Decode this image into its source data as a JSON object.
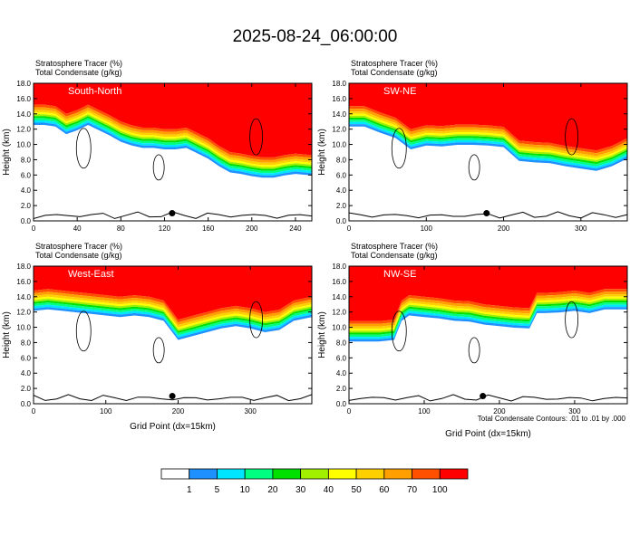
{
  "title": "2025-08-24_06:00:00",
  "legend": {
    "levels": [
      "1",
      "5",
      "10",
      "20",
      "30",
      "40",
      "50",
      "60",
      "70",
      "100"
    ],
    "colors": [
      "#ffffff",
      "#1e90ff",
      "#00e5ff",
      "#00ff80",
      "#00e000",
      "#a0f000",
      "#ffff00",
      "#ffd000",
      "#ffa000",
      "#ff5000",
      "#ff0000"
    ]
  },
  "footnote": "Total Condensate Contours: .01 to .01 by .000",
  "chart_data": [
    {
      "type": "heatmap",
      "title": "South-North",
      "fields": [
        "Stratosphere Tracer   (%)",
        "Total Condensate   (g/kg)"
      ],
      "ylabel": "Height (km)",
      "xlabel": "",
      "xlim": [
        0,
        255
      ],
      "ylim": [
        0,
        18
      ],
      "xticks": [
        0,
        40,
        80,
        120,
        160,
        200,
        240
      ],
      "yticks": [
        "0.0",
        "2.0",
        "4.0",
        "6.0",
        "8.0",
        "10.0",
        "12.0",
        "14.0",
        "16.0",
        "18.0"
      ],
      "tropopause_x": [
        0,
        10,
        20,
        30,
        40,
        50,
        60,
        70,
        80,
        90,
        100,
        110,
        120,
        130,
        140,
        150,
        160,
        170,
        180,
        190,
        200,
        210,
        220,
        230,
        240,
        255
      ],
      "tropopause_y": [
        15.2,
        15.2,
        15.0,
        14.0,
        14.5,
        15.2,
        14.5,
        13.8,
        13.0,
        12.5,
        12.2,
        12.2,
        12.0,
        12.0,
        12.2,
        11.5,
        10.8,
        9.8,
        9.0,
        8.8,
        8.5,
        8.3,
        8.3,
        8.6,
        8.8,
        8.6
      ],
      "dot": [
        127,
        1.0
      ]
    },
    {
      "type": "heatmap",
      "title": "SW-NE",
      "fields": [
        "Stratosphere Tracer   (%)",
        "Total Condensate   (g/kg)"
      ],
      "ylabel": "Height (km)",
      "xlabel": "",
      "xlim": [
        0,
        360
      ],
      "ylim": [
        0,
        18
      ],
      "xticks": [
        0,
        100,
        200,
        300
      ],
      "yticks": [
        "0.0",
        "2.0",
        "4.0",
        "6.0",
        "8.0",
        "10.0",
        "12.0",
        "14.0",
        "16.0",
        "18.0"
      ],
      "tropopause_x": [
        0,
        20,
        40,
        60,
        80,
        100,
        120,
        140,
        160,
        180,
        200,
        220,
        240,
        260,
        280,
        300,
        320,
        340,
        360
      ],
      "tropopause_y": [
        15.0,
        15.0,
        14.2,
        13.5,
        12.0,
        12.5,
        12.4,
        12.6,
        12.6,
        12.5,
        12.3,
        10.5,
        10.3,
        10.2,
        9.8,
        9.5,
        9.2,
        9.8,
        10.8
      ],
      "dot": [
        178,
        1.0
      ]
    },
    {
      "type": "heatmap",
      "title": "West-East",
      "fields": [
        "Stratosphere Tracer   (%)",
        "Total Condensate   (g/kg)"
      ],
      "ylabel": "Height (km)",
      "xlabel": "Grid Point (dx=15km)",
      "xlim": [
        0,
        385
      ],
      "ylim": [
        0,
        18
      ],
      "xticks": [
        0,
        100,
        200,
        300
      ],
      "yticks": [
        "0.0",
        "2.0",
        "4.0",
        "6.0",
        "8.0",
        "10.0",
        "12.0",
        "14.0",
        "16.0",
        "18.0"
      ],
      "tropopause_x": [
        0,
        20,
        40,
        60,
        80,
        100,
        120,
        140,
        160,
        180,
        200,
        220,
        240,
        260,
        280,
        300,
        320,
        340,
        360,
        385
      ],
      "tropopause_y": [
        14.8,
        15.0,
        14.8,
        14.6,
        14.4,
        14.2,
        14.0,
        14.2,
        14.0,
        13.5,
        11.0,
        11.5,
        12.0,
        12.5,
        12.8,
        12.5,
        12.0,
        12.3,
        13.5,
        14.0
      ],
      "dot": [
        192,
        1.0
      ]
    },
    {
      "type": "heatmap",
      "title": "NW-SE",
      "fields": [
        "Stratosphere Tracer   (%)",
        "Total Condensate   (g/kg)"
      ],
      "ylabel": "Height (km)",
      "xlabel": "Grid Point (dx=15km)",
      "xlim": [
        0,
        370
      ],
      "ylim": [
        0,
        18
      ],
      "xticks": [
        0,
        100,
        200,
        300
      ],
      "yticks": [
        "0.0",
        "2.0",
        "4.0",
        "6.0",
        "8.0",
        "10.0",
        "12.0",
        "14.0",
        "16.0",
        "18.0"
      ],
      "tropopause_x": [
        0,
        20,
        40,
        60,
        70,
        80,
        100,
        120,
        140,
        160,
        180,
        200,
        220,
        240,
        250,
        260,
        280,
        300,
        320,
        340,
        370
      ],
      "tropopause_y": [
        10.8,
        10.8,
        10.8,
        11.0,
        13.5,
        14.2,
        14.0,
        13.8,
        13.5,
        13.4,
        13.0,
        12.8,
        12.6,
        12.5,
        14.5,
        14.5,
        14.6,
        14.8,
        14.5,
        15.0,
        15.0
      ],
      "dot": [
        178,
        1.0
      ]
    }
  ]
}
